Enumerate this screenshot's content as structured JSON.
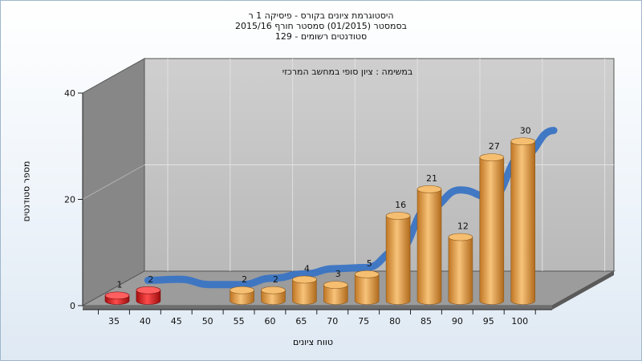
{
  "chart_data": {
    "type": "bar",
    "title_lines": [
      "היסטוגרמת ציונים בקורס - פיסיקה 1 ר",
      "בסמסטר  (01/2015)  סמסטר חורף 2015/16",
      "129 - סטודנטים רשומים"
    ],
    "subtitle": "במשימה : ציון סופי במחשב המרכזי",
    "xlabel": "טווח ציונים",
    "ylabel": "מספר סטודנטים",
    "y_ticks": [
      "0",
      "20",
      "40"
    ],
    "ylim": [
      0,
      40
    ],
    "categories": [
      "35",
      "40",
      "45",
      "50",
      "55",
      "60",
      "65",
      "70",
      "75",
      "80",
      "85",
      "90",
      "95",
      "100"
    ],
    "values": [
      1,
      2,
      0,
      0,
      2,
      2,
      4,
      3,
      5,
      16,
      21,
      12,
      27,
      30
    ],
    "failing_color": "#d42a2a",
    "passing_color": "#e8a048",
    "curve_color": "#3a74c4",
    "grid": true,
    "legend": "none"
  }
}
